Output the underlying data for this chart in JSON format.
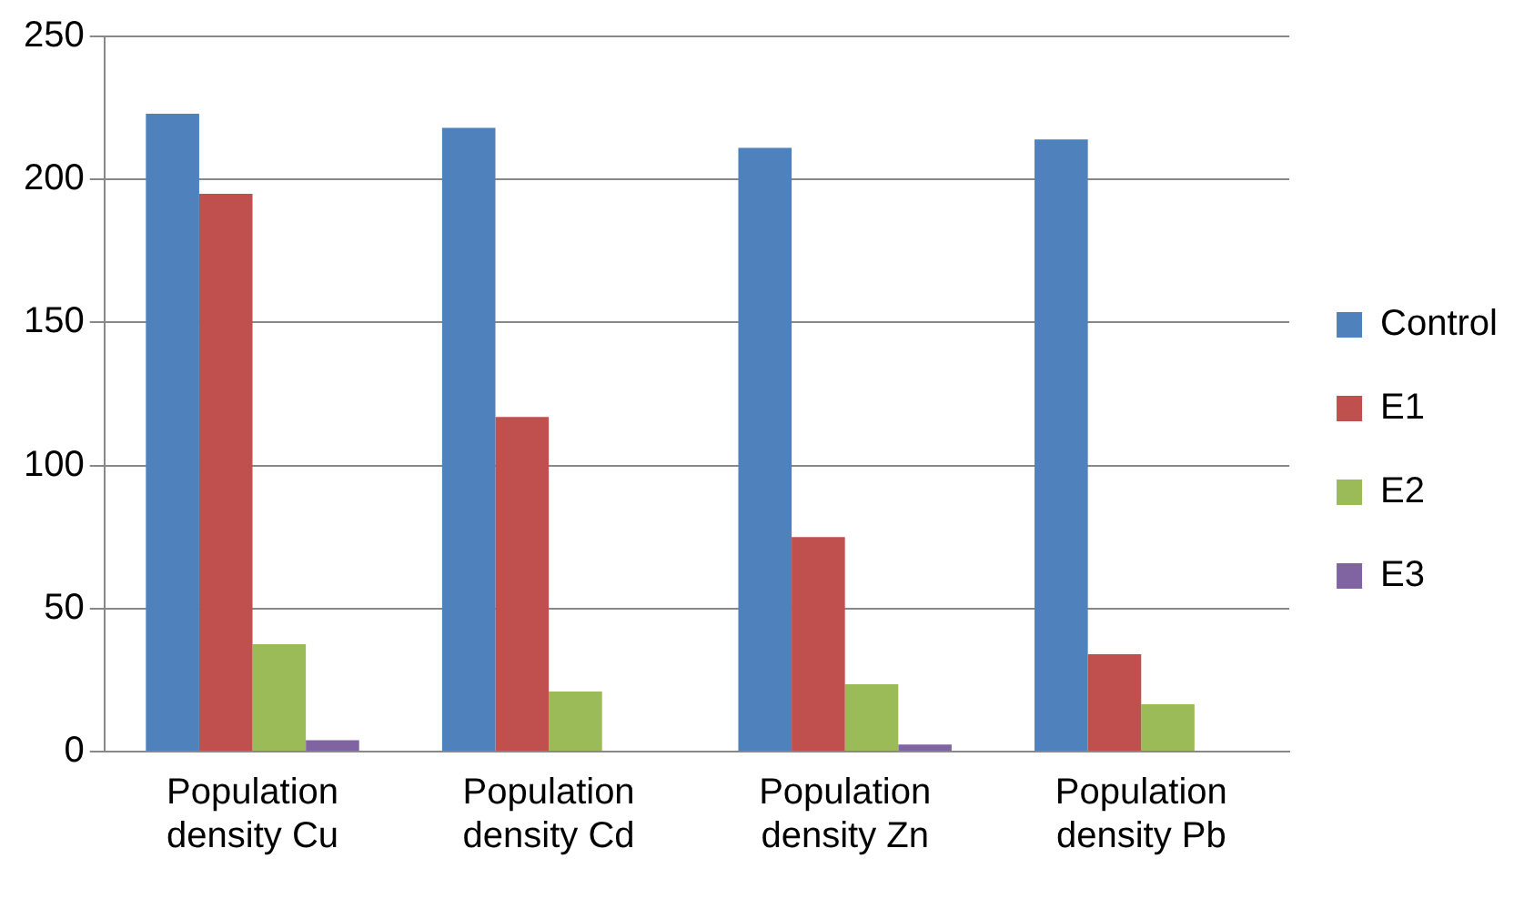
{
  "chart_data": {
    "type": "bar",
    "categories": [
      "Population density Cu",
      "Population density Cd",
      "Population density Zn",
      "Population density Pb"
    ],
    "series": [
      {
        "name": "Control",
        "color": "#4f81bd",
        "values": [
          223,
          218,
          211,
          214
        ]
      },
      {
        "name": "E1",
        "color": "#c0504d",
        "values": [
          195,
          117,
          75,
          34
        ]
      },
      {
        "name": "E2",
        "color": "#9bbb59",
        "values": [
          37.5,
          21,
          23.5,
          16.5
        ]
      },
      {
        "name": "E3",
        "color": "#8064a2",
        "values": [
          4,
          null,
          2.5,
          null
        ]
      }
    ],
    "ylim": [
      0,
      250
    ],
    "yticks": [
      0,
      50,
      100,
      150,
      200,
      250
    ],
    "grid": "y",
    "legend": "right"
  }
}
